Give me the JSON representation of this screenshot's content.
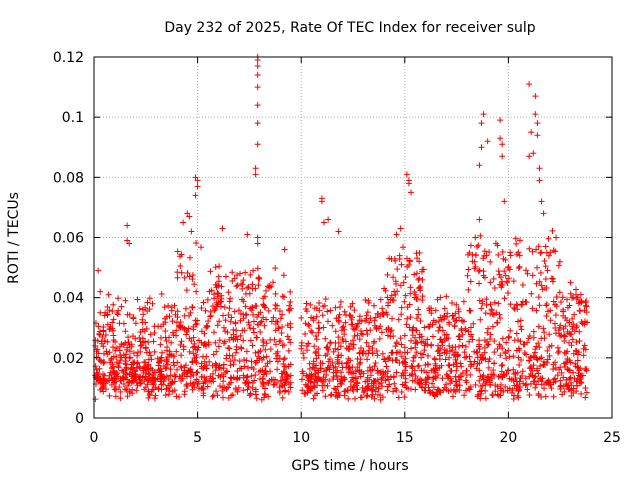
{
  "chart_data": {
    "type": "scatter",
    "title": "Day 232 of 2025, Rate Of TEC Index for receiver sulp",
    "xlabel": "GPS time / hours",
    "ylabel": "ROTI / TECUs",
    "xlim": [
      0,
      25
    ],
    "ylim": [
      0,
      0.12
    ],
    "xticks": [
      0,
      5,
      10,
      15,
      20,
      25
    ],
    "xtick_labels": [
      "0",
      "5",
      "10",
      "15",
      "20",
      "25"
    ],
    "yticks": [
      0,
      0.02,
      0.04,
      0.06,
      0.08,
      0.1,
      0.12
    ],
    "ytick_labels": [
      "0",
      "0.02",
      "0.04",
      "0.06",
      "0.08",
      "0.1",
      "0.12"
    ],
    "grid": true,
    "marker": "+",
    "color": "#ff0000",
    "data_gap_hours": [
      9.5,
      10.0
    ],
    "series": [
      {
        "name": "ROTI",
        "x": [
          0.2,
          0.3,
          0.3,
          1.6,
          1.6,
          1.7,
          4.3,
          4.5,
          4.6,
          4.7,
          4.9,
          4.9,
          5.0,
          5.0,
          6.2,
          7.4,
          7.8,
          7.8,
          7.9,
          7.9,
          7.9,
          7.9,
          7.9,
          7.9,
          7.9,
          7.9,
          7.9,
          7.9,
          9.2,
          11.0,
          11.0,
          11.1,
          11.3,
          11.8,
          14.6,
          14.8,
          15.1,
          15.2,
          15.2,
          15.3,
          18.4,
          18.6,
          18.6,
          18.7,
          18.7,
          18.8,
          19.0,
          19.6,
          19.6,
          19.7,
          19.7,
          19.8,
          21.0,
          21.1,
          21.2,
          21.3,
          21.3,
          21.4,
          21.4,
          21.5,
          21.5,
          21.6,
          21.7,
          21.0,
          21.8,
          22.3,
          23.0,
          23.5
        ],
        "y": [
          0.049,
          0.042,
          0.035,
          0.059,
          0.064,
          0.058,
          0.065,
          0.068,
          0.067,
          0.062,
          0.074,
          0.08,
          0.079,
          0.077,
          0.063,
          0.061,
          0.081,
          0.083,
          0.091,
          0.098,
          0.104,
          0.11,
          0.114,
          0.117,
          0.119,
          0.12,
          0.06,
          0.058,
          0.056,
          0.073,
          0.072,
          0.065,
          0.066,
          0.062,
          0.061,
          0.063,
          0.081,
          0.079,
          0.078,
          0.075,
          0.06,
          0.066,
          0.084,
          0.09,
          0.098,
          0.101,
          0.092,
          0.099,
          0.093,
          0.091,
          0.087,
          0.072,
          0.111,
          0.095,
          0.088,
          0.107,
          0.101,
          0.098,
          0.094,
          0.083,
          0.079,
          0.072,
          0.068,
          0.087,
          0.057,
          0.06,
          0.045,
          0.041
        ]
      }
    ]
  }
}
